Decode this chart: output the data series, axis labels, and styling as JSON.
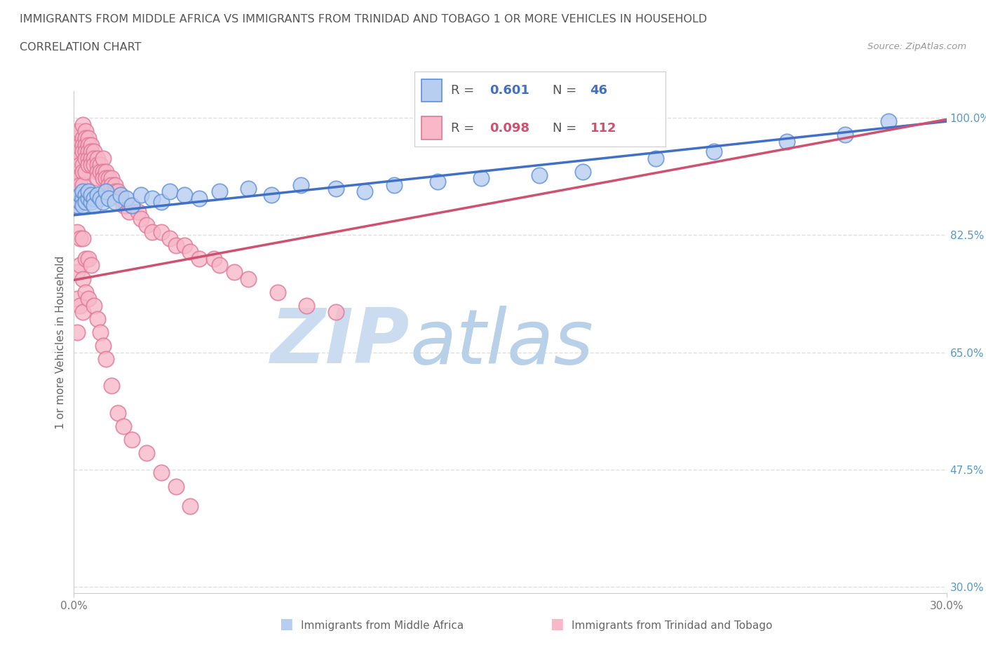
{
  "title": "IMMIGRANTS FROM MIDDLE AFRICA VS IMMIGRANTS FROM TRINIDAD AND TOBAGO 1 OR MORE VEHICLES IN HOUSEHOLD",
  "subtitle": "CORRELATION CHART",
  "source": "Source: ZipAtlas.com",
  "ylabel": "1 or more Vehicles in Household",
  "xlim": [
    0.0,
    0.3
  ],
  "ylim": [
    0.29,
    1.04
  ],
  "x_ticks": [
    0.0,
    0.3
  ],
  "x_tick_labels": [
    "0.0%",
    "30.0%"
  ],
  "y_ticks": [
    0.3,
    0.475,
    0.65,
    0.825,
    1.0
  ],
  "y_tick_labels": [
    "30.0%",
    "47.5%",
    "65.0%",
    "82.5%",
    "100.0%"
  ],
  "blue_R": 0.601,
  "blue_N": 46,
  "pink_R": 0.098,
  "pink_N": 112,
  "blue_fill": "#b8cef0",
  "pink_fill": "#f8b8c8",
  "blue_edge": "#6090d8",
  "pink_edge": "#e07898",
  "blue_line": "#4070c8",
  "pink_line": "#d05070",
  "watermark_color": "#dde8f5",
  "bg_color": "#ffffff",
  "grid_color": "#e0e0e0",
  "tick_color_y": "#5599cc",
  "tick_color_x": "#777777",
  "legend_blue": "Immigrants from Middle Africa",
  "legend_pink": "Immigrants from Trinidad and Tobago",
  "blue_x": [
    0.001,
    0.001,
    0.002,
    0.002,
    0.003,
    0.003,
    0.003,
    0.004,
    0.004,
    0.005,
    0.005,
    0.006,
    0.006,
    0.007,
    0.007,
    0.008,
    0.009,
    0.01,
    0.011,
    0.012,
    0.014,
    0.016,
    0.018,
    0.02,
    0.023,
    0.027,
    0.03,
    0.033,
    0.038,
    0.043,
    0.05,
    0.06,
    0.068,
    0.078,
    0.09,
    0.1,
    0.11,
    0.125,
    0.14,
    0.16,
    0.175,
    0.2,
    0.22,
    0.245,
    0.265,
    0.28
  ],
  "blue_y": [
    0.87,
    0.88,
    0.875,
    0.885,
    0.88,
    0.89,
    0.87,
    0.885,
    0.875,
    0.88,
    0.89,
    0.875,
    0.885,
    0.88,
    0.87,
    0.885,
    0.88,
    0.875,
    0.89,
    0.88,
    0.875,
    0.885,
    0.88,
    0.87,
    0.885,
    0.88,
    0.875,
    0.89,
    0.885,
    0.88,
    0.89,
    0.895,
    0.885,
    0.9,
    0.895,
    0.89,
    0.9,
    0.905,
    0.91,
    0.915,
    0.92,
    0.94,
    0.95,
    0.965,
    0.975,
    0.995
  ],
  "pink_x": [
    0.001,
    0.001,
    0.001,
    0.001,
    0.001,
    0.001,
    0.001,
    0.001,
    0.001,
    0.001,
    0.001,
    0.002,
    0.002,
    0.002,
    0.002,
    0.002,
    0.002,
    0.002,
    0.002,
    0.003,
    0.003,
    0.003,
    0.003,
    0.003,
    0.003,
    0.003,
    0.004,
    0.004,
    0.004,
    0.004,
    0.004,
    0.004,
    0.005,
    0.005,
    0.005,
    0.005,
    0.005,
    0.006,
    0.006,
    0.006,
    0.006,
    0.007,
    0.007,
    0.007,
    0.008,
    0.008,
    0.008,
    0.008,
    0.009,
    0.009,
    0.01,
    0.01,
    0.01,
    0.011,
    0.011,
    0.012,
    0.012,
    0.013,
    0.013,
    0.014,
    0.014,
    0.015,
    0.016,
    0.017,
    0.018,
    0.019,
    0.02,
    0.022,
    0.023,
    0.025,
    0.027,
    0.03,
    0.033,
    0.035,
    0.038,
    0.04,
    0.043,
    0.048,
    0.05,
    0.055,
    0.06,
    0.07,
    0.08,
    0.09,
    0.001,
    0.001,
    0.001,
    0.001,
    0.002,
    0.002,
    0.002,
    0.003,
    0.003,
    0.003,
    0.004,
    0.004,
    0.005,
    0.005,
    0.006,
    0.007,
    0.008,
    0.009,
    0.01,
    0.011,
    0.013,
    0.015,
    0.017,
    0.02,
    0.025,
    0.03,
    0.035,
    0.04
  ],
  "pink_y": [
    0.96,
    0.98,
    0.94,
    0.97,
    0.93,
    0.95,
    0.92,
    0.91,
    0.9,
    0.89,
    0.87,
    0.98,
    0.96,
    0.95,
    0.94,
    0.93,
    0.91,
    0.9,
    0.88,
    0.99,
    0.97,
    0.96,
    0.95,
    0.93,
    0.92,
    0.9,
    0.98,
    0.97,
    0.96,
    0.95,
    0.94,
    0.92,
    0.97,
    0.96,
    0.95,
    0.94,
    0.93,
    0.96,
    0.95,
    0.94,
    0.93,
    0.95,
    0.94,
    0.93,
    0.94,
    0.93,
    0.92,
    0.91,
    0.93,
    0.92,
    0.94,
    0.92,
    0.91,
    0.92,
    0.91,
    0.91,
    0.9,
    0.91,
    0.9,
    0.9,
    0.89,
    0.89,
    0.88,
    0.87,
    0.87,
    0.86,
    0.87,
    0.86,
    0.85,
    0.84,
    0.83,
    0.83,
    0.82,
    0.81,
    0.81,
    0.8,
    0.79,
    0.79,
    0.78,
    0.77,
    0.76,
    0.74,
    0.72,
    0.71,
    0.83,
    0.77,
    0.73,
    0.68,
    0.82,
    0.78,
    0.72,
    0.82,
    0.76,
    0.71,
    0.79,
    0.74,
    0.79,
    0.73,
    0.78,
    0.72,
    0.7,
    0.68,
    0.66,
    0.64,
    0.6,
    0.56,
    0.54,
    0.52,
    0.5,
    0.47,
    0.45,
    0.42
  ],
  "blue_line_x": [
    0.0,
    0.3
  ],
  "blue_line_y": [
    0.855,
    0.995
  ],
  "pink_line_x": [
    0.0,
    0.3
  ],
  "pink_line_y": [
    0.758,
    0.998
  ]
}
